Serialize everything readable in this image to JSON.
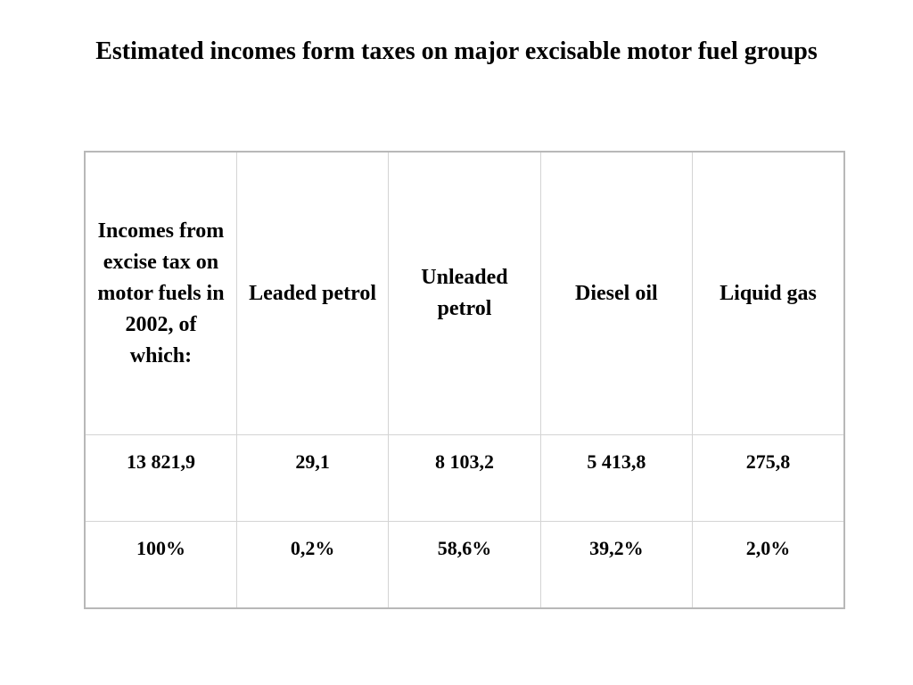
{
  "title": "Estimated incomes form taxes on major excisable motor fuel groups",
  "table": {
    "headers": [
      "Incomes from excise tax on motor fuels in 2002,  of which:",
      "Leaded petrol",
      "Unleaded petrol",
      "Diesel oil",
      "Liquid gas"
    ],
    "rows": [
      [
        "13 821,9",
        "29,1",
        "8 103,2",
        "5 413,8",
        "275,8"
      ],
      [
        "100%",
        "0,2%",
        "58,6%",
        "39,2%",
        "2,0%"
      ]
    ]
  }
}
